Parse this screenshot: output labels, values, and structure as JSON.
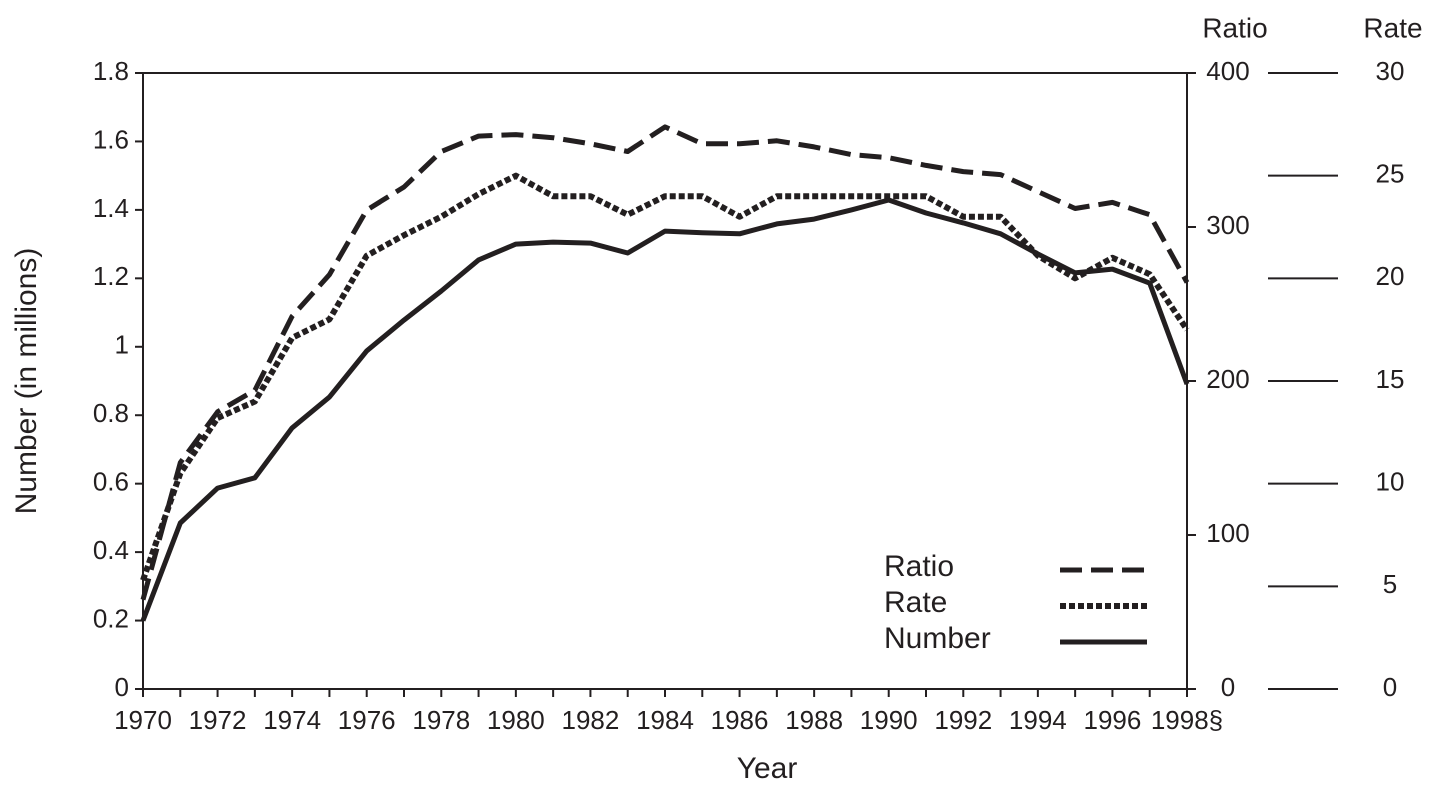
{
  "chart_data": {
    "type": "line",
    "xlabel": "Year",
    "ylabel": "Number (in millions)",
    "y2label": "Ratio",
    "y3label": "Rate",
    "x": [
      1970,
      1971,
      1972,
      1973,
      1974,
      1975,
      1976,
      1977,
      1978,
      1979,
      1980,
      1981,
      1982,
      1983,
      1984,
      1985,
      1986,
      1987,
      1988,
      1989,
      1990,
      1991,
      1992,
      1993,
      1994,
      1995,
      1996,
      1997,
      1998
    ],
    "xlim": [
      1970,
      1998
    ],
    "xticks": [
      1970,
      1972,
      1974,
      1976,
      1978,
      1980,
      1982,
      1984,
      1986,
      1988,
      1990,
      1992,
      1994,
      1996,
      {
        "value": 1998,
        "label": "1998§"
      }
    ],
    "ylim": [
      0,
      1.8
    ],
    "yticks": [
      0,
      0.2,
      0.4,
      0.6,
      0.8,
      1,
      1.2,
      1.4,
      1.6,
      1.8
    ],
    "y2lim": [
      0,
      400
    ],
    "y2ticks": [
      0,
      100,
      200,
      300,
      400
    ],
    "y3lim": [
      0,
      30
    ],
    "y3ticks": [
      0,
      5,
      10,
      15,
      20,
      25,
      30
    ],
    "legend": "lower right",
    "series": [
      {
        "name": "Ratio",
        "color": "#231f20",
        "linestyle": "dashed",
        "axis": "y2",
        "values": [
          58,
          147,
          180,
          194,
          242,
          269,
          311,
          326,
          349,
          359,
          360,
          358,
          354,
          349,
          365,
          354,
          354,
          356,
          352,
          347,
          345,
          340,
          336,
          334,
          323,
          312,
          316,
          308,
          264
        ]
      },
      {
        "name": "Rate",
        "color": "#231f20",
        "linestyle": "dotted",
        "axis": "y3",
        "values": [
          5.3,
          10.5,
          13.2,
          14.0,
          17.1,
          18.0,
          21.1,
          22.1,
          23.0,
          24.1,
          25.0,
          24.0,
          24.0,
          23.1,
          24.0,
          24.0,
          23.0,
          24.0,
          24.0,
          24.0,
          24.0,
          24.0,
          23.0,
          23.0,
          21.1,
          20.0,
          21.0,
          20.2,
          17.5
        ]
      },
      {
        "name": "Number",
        "color": "#231f20",
        "linestyle": "solid",
        "values": [
          0.2,
          0.485,
          0.587,
          0.617,
          0.763,
          0.853,
          0.988,
          1.078,
          1.163,
          1.254,
          1.3,
          1.306,
          1.303,
          1.274,
          1.338,
          1.333,
          1.33,
          1.359,
          1.373,
          1.4,
          1.429,
          1.391,
          1.362,
          1.33,
          1.271,
          1.216,
          1.227,
          1.186,
          0.891
        ]
      }
    ]
  }
}
